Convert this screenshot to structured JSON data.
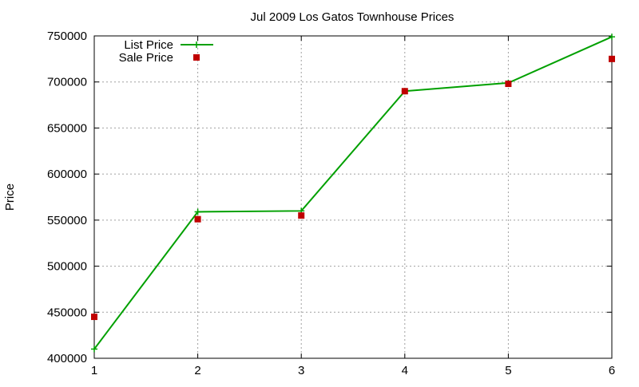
{
  "chart_data": {
    "type": "line",
    "title": "Jul 2009 Los Gatos Townhouse Prices",
    "xlabel": "",
    "ylabel": "Price",
    "x": [
      1,
      2,
      3,
      4,
      5,
      6
    ],
    "xlim": [
      1,
      6
    ],
    "ylim": [
      400000,
      750000
    ],
    "xticks": [
      1,
      2,
      3,
      4,
      5,
      6
    ],
    "yticks": [
      400000,
      450000,
      500000,
      550000,
      600000,
      650000,
      700000,
      750000
    ],
    "grid": true,
    "legend_position": "top-left",
    "series": [
      {
        "name": "List Price",
        "style": "line+cross",
        "color": "#00a000",
        "values": [
          410000,
          559000,
          560000,
          690000,
          699000,
          749000
        ]
      },
      {
        "name": "Sale Price",
        "style": "square",
        "color": "#c00000",
        "values": [
          445000,
          551000,
          555000,
          690000,
          698000,
          725000
        ]
      }
    ]
  }
}
